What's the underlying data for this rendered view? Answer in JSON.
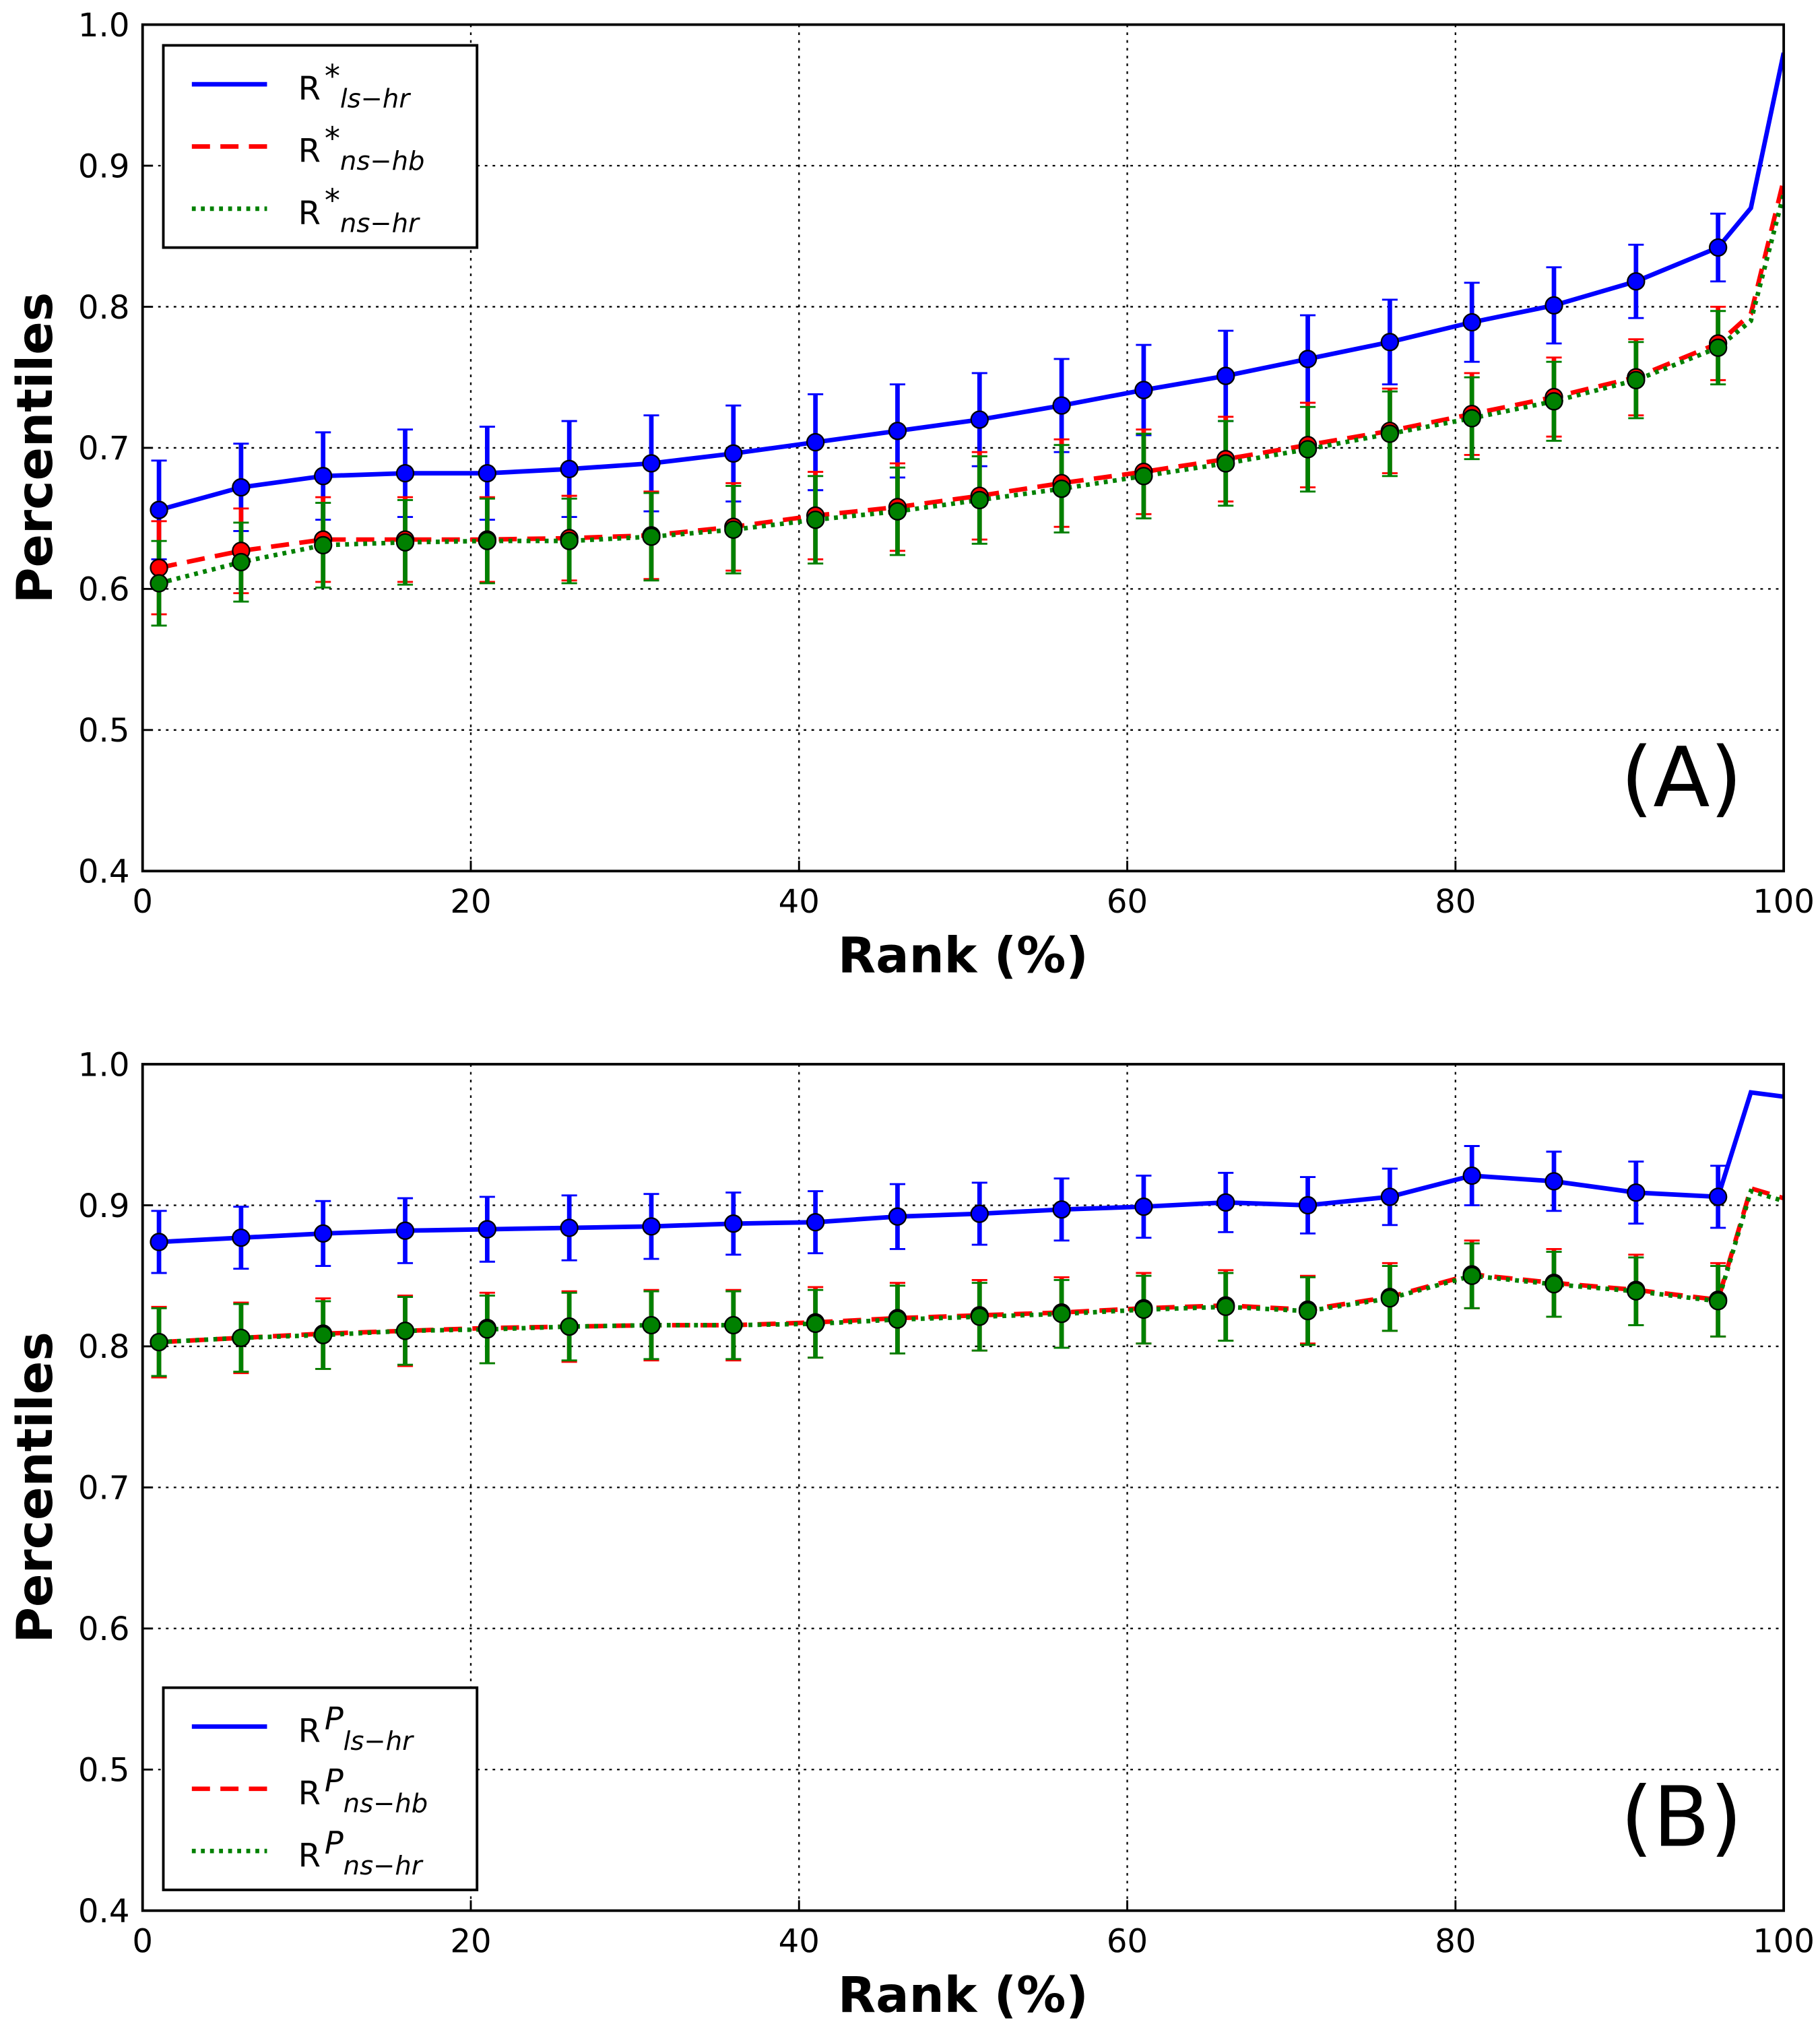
{
  "chart_data": [
    {
      "type": "line",
      "xlabel": "Rank (%)",
      "ylabel": "Percentiles",
      "annotation": "(A)",
      "x": [
        1,
        6,
        11,
        16,
        21,
        26,
        31,
        36,
        41,
        46,
        51,
        56,
        61,
        66,
        71,
        76,
        81,
        86,
        91,
        96,
        98,
        100
      ],
      "series": [
        {
          "name": "R",
          "superscript": "*",
          "subscript": "ls−hr",
          "color": "#0000ff",
          "style": "solid",
          "values": [
            0.656,
            0.672,
            0.68,
            0.682,
            0.682,
            0.685,
            0.689,
            0.696,
            0.704,
            0.712,
            0.72,
            0.73,
            0.741,
            0.751,
            0.763,
            0.775,
            0.789,
            0.801,
            0.818,
            0.842,
            0.87,
            0.98
          ],
          "errors": [
            0.035,
            0.031,
            0.031,
            0.031,
            0.033,
            0.034,
            0.034,
            0.034,
            0.034,
            0.033,
            0.033,
            0.033,
            0.032,
            0.032,
            0.031,
            0.03,
            0.028,
            0.027,
            0.026,
            0.024,
            null,
            null
          ]
        },
        {
          "name": "R",
          "superscript": "*",
          "subscript": "ns−hb",
          "color": "#ff0000",
          "style": "dashed",
          "values": [
            0.615,
            0.627,
            0.635,
            0.635,
            0.635,
            0.636,
            0.638,
            0.644,
            0.652,
            0.658,
            0.666,
            0.675,
            0.683,
            0.692,
            0.702,
            0.712,
            0.724,
            0.736,
            0.75,
            0.774,
            0.795,
            0.89
          ],
          "errors": [
            0.033,
            0.03,
            0.03,
            0.03,
            0.03,
            0.03,
            0.031,
            0.031,
            0.031,
            0.031,
            0.031,
            0.031,
            0.03,
            0.03,
            0.03,
            0.03,
            0.029,
            0.028,
            0.027,
            0.026,
            null,
            null
          ]
        },
        {
          "name": "R",
          "superscript": "*",
          "subscript": "ns−hr",
          "color": "#008000",
          "style": "dotted",
          "values": [
            0.604,
            0.619,
            0.631,
            0.633,
            0.634,
            0.634,
            0.637,
            0.642,
            0.649,
            0.655,
            0.663,
            0.671,
            0.68,
            0.689,
            0.699,
            0.71,
            0.721,
            0.733,
            0.748,
            0.771,
            0.79,
            0.88
          ],
          "errors": [
            0.03,
            0.028,
            0.03,
            0.03,
            0.03,
            0.03,
            0.031,
            0.031,
            0.031,
            0.031,
            0.031,
            0.031,
            0.03,
            0.03,
            0.03,
            0.03,
            0.029,
            0.028,
            0.027,
            0.026,
            null,
            null
          ]
        }
      ],
      "xlim": [
        0,
        100
      ],
      "xticks": [
        0,
        20,
        40,
        60,
        80,
        100
      ],
      "ylim": [
        0.4,
        1
      ],
      "yticks": [
        0.4,
        0.5,
        0.6,
        0.7,
        0.8,
        0.9,
        {
          "value": 1,
          "label": "1.0"
        }
      ],
      "grid": true,
      "legend": "upper left"
    },
    {
      "type": "line",
      "xlabel": "Rank (%)",
      "ylabel": "Percentiles",
      "annotation": "(B)",
      "x": [
        1,
        6,
        11,
        16,
        21,
        26,
        31,
        36,
        41,
        46,
        51,
        56,
        61,
        66,
        71,
        76,
        81,
        86,
        91,
        96,
        98,
        100
      ],
      "series": [
        {
          "name": "R",
          "superscript": "P",
          "subscript": "ls−hr",
          "color": "#0000ff",
          "style": "solid",
          "values": [
            0.874,
            0.877,
            0.88,
            0.882,
            0.883,
            0.884,
            0.885,
            0.887,
            0.888,
            0.892,
            0.894,
            0.897,
            0.899,
            0.902,
            0.9,
            0.906,
            0.921,
            0.917,
            0.909,
            0.906,
            0.98,
            0.977
          ],
          "errors": [
            0.022,
            0.022,
            0.023,
            0.023,
            0.023,
            0.023,
            0.023,
            0.022,
            0.022,
            0.023,
            0.022,
            0.022,
            0.022,
            0.021,
            0.02,
            0.02,
            0.021,
            0.021,
            0.022,
            0.022,
            null,
            null
          ]
        },
        {
          "name": "R",
          "superscript": "P",
          "subscript": "ns−hb",
          "color": "#ff0000",
          "style": "dashed",
          "values": [
            0.803,
            0.806,
            0.809,
            0.811,
            0.813,
            0.814,
            0.815,
            0.815,
            0.817,
            0.82,
            0.822,
            0.824,
            0.827,
            0.829,
            0.826,
            0.835,
            0.851,
            0.845,
            0.84,
            0.833,
            0.912,
            0.905
          ],
          "errors": [
            0.025,
            0.025,
            0.025,
            0.025,
            0.025,
            0.025,
            0.025,
            0.025,
            0.025,
            0.025,
            0.025,
            0.025,
            0.025,
            0.025,
            0.024,
            0.024,
            0.024,
            0.024,
            0.025,
            0.026,
            null,
            null
          ]
        },
        {
          "name": "R",
          "superscript": "P",
          "subscript": "ns−hr",
          "color": "#008000",
          "style": "dotted",
          "values": [
            0.803,
            0.806,
            0.808,
            0.811,
            0.812,
            0.814,
            0.815,
            0.815,
            0.816,
            0.819,
            0.821,
            0.823,
            0.826,
            0.828,
            0.825,
            0.834,
            0.85,
            0.844,
            0.839,
            0.832,
            0.91,
            0.903
          ],
          "errors": [
            0.024,
            0.024,
            0.024,
            0.024,
            0.024,
            0.024,
            0.024,
            0.024,
            0.024,
            0.024,
            0.024,
            0.024,
            0.024,
            0.024,
            0.024,
            0.023,
            0.023,
            0.023,
            0.024,
            0.025,
            null,
            null
          ]
        }
      ],
      "xlim": [
        0,
        100
      ],
      "xticks": [
        0,
        20,
        40,
        60,
        80,
        100
      ],
      "ylim": [
        0.4,
        1
      ],
      "yticks": [
        0.4,
        0.5,
        0.6,
        0.7,
        0.8,
        0.9,
        {
          "value": 1,
          "label": "1.0"
        }
      ],
      "grid": true,
      "legend": "lower left"
    }
  ]
}
